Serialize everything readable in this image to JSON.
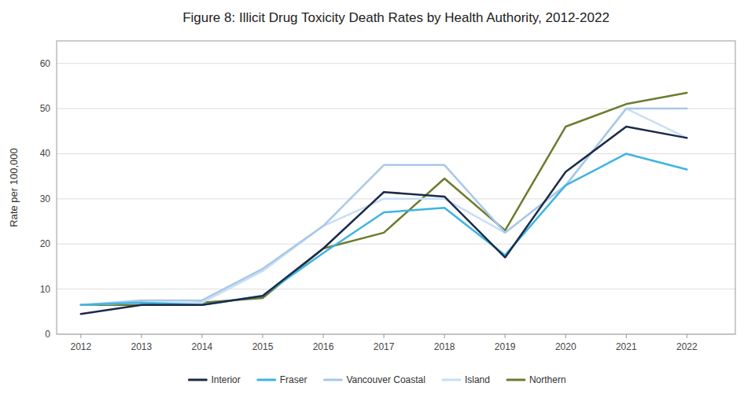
{
  "chart_data": {
    "type": "line",
    "title": "Figure 8: Illicit Drug Toxicity Death Rates by Health Authority, 2012-2022",
    "ylabel": "Rate per 100,000",
    "x": [
      2012,
      2013,
      2014,
      2015,
      2016,
      2017,
      2018,
      2019,
      2020,
      2021,
      2022
    ],
    "series": [
      {
        "name": "Interior",
        "color": "#1c2b4a",
        "values": [
          4.5,
          6.5,
          6.5,
          8.5,
          19.0,
          31.5,
          30.5,
          17.0,
          36.0,
          46.0,
          43.5
        ]
      },
      {
        "name": "Fraser",
        "color": "#3cb4e5",
        "values": [
          6.5,
          7.0,
          6.5,
          8.5,
          18.0,
          27.0,
          28.0,
          17.5,
          33.0,
          40.0,
          36.5
        ]
      },
      {
        "name": "Vancouver Coastal",
        "color": "#a8c8e8",
        "values": [
          6.5,
          7.5,
          7.5,
          14.5,
          24.0,
          37.5,
          37.5,
          22.5,
          33.0,
          50.0,
          50.0
        ]
      },
      {
        "name": "Island",
        "color": "#c8dff4",
        "values": [
          6.5,
          7.0,
          7.0,
          14.0,
          24.0,
          30.0,
          30.0,
          22.5,
          33.0,
          50.0,
          43.5
        ]
      },
      {
        "name": "Northern",
        "color": "#6b7c2e",
        "values": [
          6.5,
          6.5,
          7.0,
          8.0,
          19.0,
          22.5,
          34.5,
          23.0,
          46.0,
          51.0,
          53.5
        ]
      }
    ],
    "xlim": [
      2011.6,
      2022.8
    ],
    "xticks": [
      2012,
      2013,
      2014,
      2015,
      2016,
      2017,
      2018,
      2019,
      2020,
      2021,
      2022
    ],
    "ylim": [
      0,
      65
    ],
    "yticks": [
      0,
      10,
      20,
      30,
      40,
      50,
      60
    ],
    "grid": true,
    "legend": "bottom"
  }
}
